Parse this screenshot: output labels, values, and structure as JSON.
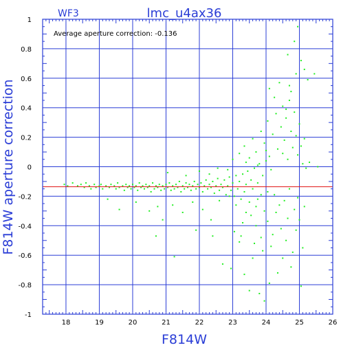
{
  "header": {
    "camera": "WF3",
    "title": "lmc_u4ax36"
  },
  "annotation": "Average aperture correction: -0.136",
  "colors": {
    "frame": "#2a3dd6",
    "grid": "#2a3dd6",
    "points": "#22ee22",
    "mean_line": "#e01010",
    "tick_text": "#000000"
  },
  "chart_data": {
    "type": "scatter",
    "title": "lmc_u4ax36",
    "xlabel": "F814W",
    "ylabel": "F814W aperture correction",
    "xlim": [
      17.3,
      26
    ],
    "ylim": [
      -1,
      1
    ],
    "xticks": [
      18,
      19,
      20,
      21,
      22,
      23,
      24,
      25,
      26
    ],
    "xtick_labels": [
      "18",
      "19",
      "20",
      "21",
      "22",
      "23",
      "24",
      "25",
      "26"
    ],
    "yticks": [
      -1,
      -0.8,
      -0.6,
      -0.4,
      -0.2,
      0,
      0.2,
      0.4,
      0.6,
      0.8,
      1
    ],
    "ytick_labels": [
      "-1",
      "-0.8",
      "-0.6",
      "-0.4",
      "-0.2",
      "0",
      "0.2",
      "0.4",
      "0.6",
      "0.8",
      "1"
    ],
    "grid": true,
    "mean_correction": -0.136,
    "points": [
      [
        17.95,
        -0.12
      ],
      [
        18.05,
        -0.13
      ],
      [
        18.2,
        -0.11
      ],
      [
        18.35,
        -0.13
      ],
      [
        18.45,
        -0.12
      ],
      [
        18.55,
        -0.14
      ],
      [
        18.6,
        -0.11
      ],
      [
        18.7,
        -0.13
      ],
      [
        18.75,
        -0.15
      ],
      [
        18.85,
        -0.12
      ],
      [
        18.9,
        -0.14
      ],
      [
        19.0,
        -0.13
      ],
      [
        19.05,
        -0.12
      ],
      [
        19.1,
        -0.15
      ],
      [
        19.2,
        -0.13
      ],
      [
        19.3,
        -0.14
      ],
      [
        19.35,
        -0.12
      ],
      [
        19.45,
        -0.13
      ],
      [
        19.5,
        -0.15
      ],
      [
        19.55,
        -0.11
      ],
      [
        19.6,
        -0.14
      ],
      [
        19.7,
        -0.13
      ],
      [
        19.75,
        -0.16
      ],
      [
        19.8,
        -0.12
      ],
      [
        19.85,
        -0.14
      ],
      [
        19.9,
        -0.13
      ],
      [
        19.95,
        -0.15
      ],
      [
        20.0,
        -0.12
      ],
      [
        20.05,
        -0.14
      ],
      [
        20.1,
        -0.13
      ],
      [
        20.15,
        -0.16
      ],
      [
        20.2,
        -0.11
      ],
      [
        20.25,
        -0.14
      ],
      [
        20.3,
        -0.13
      ],
      [
        20.35,
        -0.15
      ],
      [
        20.4,
        -0.12
      ],
      [
        20.45,
        -0.14
      ],
      [
        20.5,
        -0.13
      ],
      [
        20.55,
        -0.17
      ],
      [
        20.6,
        -0.11
      ],
      [
        20.65,
        -0.15
      ],
      [
        20.7,
        -0.13
      ],
      [
        20.75,
        -0.14
      ],
      [
        20.8,
        -0.12
      ],
      [
        20.85,
        -0.16
      ],
      [
        20.9,
        -0.13
      ],
      [
        20.95,
        -0.15
      ],
      [
        21.0,
        -0.12
      ],
      [
        21.05,
        -0.14
      ],
      [
        21.1,
        -0.11
      ],
      [
        21.15,
        -0.16
      ],
      [
        21.2,
        -0.13
      ],
      [
        21.25,
        -0.15
      ],
      [
        21.3,
        -0.12
      ],
      [
        21.35,
        -0.14
      ],
      [
        21.4,
        -0.1
      ],
      [
        21.45,
        -0.17
      ],
      [
        21.5,
        -0.13
      ],
      [
        21.55,
        -0.15
      ],
      [
        21.6,
        -0.11
      ],
      [
        21.65,
        -0.14
      ],
      [
        21.7,
        -0.12
      ],
      [
        21.75,
        -0.16
      ],
      [
        21.8,
        -0.13
      ],
      [
        21.85,
        -0.1
      ],
      [
        21.9,
        -0.15
      ],
      [
        21.95,
        -0.12
      ],
      [
        22.0,
        -0.14
      ],
      [
        22.05,
        -0.11
      ],
      [
        22.1,
        -0.17
      ],
      [
        22.15,
        -0.13
      ],
      [
        22.2,
        -0.09
      ],
      [
        22.25,
        -0.15
      ],
      [
        22.3,
        -0.12
      ],
      [
        22.35,
        -0.14
      ],
      [
        22.4,
        -0.1
      ],
      [
        22.45,
        -0.18
      ],
      [
        22.5,
        -0.13
      ],
      [
        22.55,
        -0.08
      ],
      [
        22.6,
        -0.16
      ],
      [
        22.65,
        -0.12
      ],
      [
        22.7,
        -0.14
      ],
      [
        22.75,
        -0.09
      ],
      [
        22.8,
        -0.19
      ],
      [
        22.85,
        -0.13
      ],
      [
        22.9,
        -0.07
      ],
      [
        22.95,
        -0.16
      ],
      [
        23.0,
        -0.11
      ],
      [
        23.05,
        -0.2
      ],
      [
        23.1,
        -0.06
      ],
      [
        23.15,
        -0.15
      ],
      [
        23.2,
        -0.1
      ],
      [
        23.25,
        -0.22
      ],
      [
        23.3,
        -0.05
      ],
      [
        23.35,
        -0.17
      ],
      [
        23.4,
        -0.12
      ],
      [
        23.45,
        -0.03
      ],
      [
        23.5,
        -0.24
      ],
      [
        23.55,
        -0.09
      ],
      [
        23.6,
        -0.15
      ],
      [
        23.65,
        -0.01
      ],
      [
        23.7,
        -0.27
      ],
      [
        23.75,
        -0.11
      ],
      [
        23.8,
        0.02
      ],
      [
        23.85,
        -0.19
      ],
      [
        23.9,
        -0.06
      ],
      [
        23.95,
        -0.3
      ],
      [
        24.0,
        0.04
      ],
      [
        19.25,
        -0.22
      ],
      [
        19.6,
        -0.29
      ],
      [
        20.1,
        -0.24
      ],
      [
        20.5,
        -0.3
      ],
      [
        20.75,
        -0.27
      ],
      [
        20.9,
        -0.36
      ],
      [
        21.2,
        -0.26
      ],
      [
        21.5,
        -0.31
      ],
      [
        21.8,
        -0.24
      ],
      [
        22.1,
        -0.29
      ],
      [
        22.35,
        -0.36
      ],
      [
        22.6,
        -0.23
      ],
      [
        21.05,
        -0.04
      ],
      [
        21.6,
        -0.06
      ],
      [
        22.0,
        -0.03
      ],
      [
        22.3,
        -0.05
      ],
      [
        22.55,
        -0.01
      ],
      [
        22.85,
        -0.02
      ],
      [
        20.7,
        -0.47
      ],
      [
        21.25,
        -0.61
      ],
      [
        21.9,
        -0.43
      ],
      [
        22.4,
        -0.47
      ],
      [
        22.7,
        -0.66
      ],
      [
        22.95,
        -0.69
      ],
      [
        23.05,
        -0.44
      ],
      [
        23.2,
        -0.51
      ],
      [
        23.35,
        -0.73
      ],
      [
        23.5,
        -0.84
      ],
      [
        23.6,
        -0.62
      ],
      [
        23.7,
        -0.4
      ],
      [
        23.8,
        -0.86
      ],
      [
        23.9,
        -0.57
      ],
      [
        23.95,
        -0.91
      ],
      [
        24.1,
        -0.79
      ],
      [
        24.2,
        -0.46
      ],
      [
        24.35,
        -0.72
      ],
      [
        24.5,
        -0.62
      ],
      [
        24.6,
        -0.5
      ],
      [
        24.75,
        -0.68
      ],
      [
        24.9,
        -0.43
      ],
      [
        25.05,
        -0.81
      ],
      [
        25.1,
        -0.55
      ],
      [
        23.3,
        -0.38
      ],
      [
        23.55,
        -0.33
      ],
      [
        23.85,
        -0.48
      ],
      [
        24.05,
        -0.37
      ],
      [
        24.3,
        -0.31
      ],
      [
        24.45,
        -0.42
      ],
      [
        24.65,
        -0.35
      ],
      [
        24.85,
        -0.29
      ],
      [
        25.0,
        -0.36
      ],
      [
        23.25,
        -0.47
      ],
      [
        23.65,
        -0.52
      ],
      [
        24.15,
        -0.54
      ],
      [
        24.4,
        -0.26
      ],
      [
        24.8,
        -0.58
      ],
      [
        23.0,
        0.05
      ],
      [
        23.2,
        0.09
      ],
      [
        23.35,
        0.14
      ],
      [
        23.5,
        0.06
      ],
      [
        23.6,
        0.19
      ],
      [
        23.7,
        0.1
      ],
      [
        23.85,
        0.24
      ],
      [
        23.95,
        0.16
      ],
      [
        24.05,
        0.31
      ],
      [
        24.1,
        0.07
      ],
      [
        24.2,
        0.22
      ],
      [
        24.3,
        0.36
      ],
      [
        24.35,
        0.12
      ],
      [
        24.45,
        0.27
      ],
      [
        24.5,
        0.41
      ],
      [
        24.55,
        0.18
      ],
      [
        24.6,
        0.33
      ],
      [
        24.65,
        0.05
      ],
      [
        24.7,
        0.45
      ],
      [
        24.75,
        0.24
      ],
      [
        24.8,
        0.13
      ],
      [
        24.85,
        0.37
      ],
      [
        24.9,
        0.21
      ],
      [
        24.95,
        0.08
      ],
      [
        25.0,
        0.29
      ],
      [
        25.05,
        0.14
      ],
      [
        25.1,
        0.02
      ],
      [
        25.15,
        0.19
      ],
      [
        24.1,
        0.53
      ],
      [
        24.25,
        0.47
      ],
      [
        24.4,
        0.57
      ],
      [
        24.6,
        0.39
      ],
      [
        24.75,
        0.51
      ],
      [
        24.9,
        0.63
      ],
      [
        25.05,
        0.72
      ],
      [
        25.15,
        0.66
      ],
      [
        25.25,
        0.59
      ],
      [
        25.45,
        0.63
      ],
      [
        24.65,
        0.76
      ],
      [
        24.85,
        0.85
      ],
      [
        24.95,
        0.95
      ],
      [
        24.7,
        0.55
      ],
      [
        23.4,
        0.03
      ],
      [
        23.75,
        0.01
      ],
      [
        24.0,
        0.11
      ],
      [
        24.15,
        -0.02
      ],
      [
        24.5,
        0.09
      ],
      [
        25.2,
        -0.01
      ],
      [
        25.3,
        0.03
      ],
      [
        25.55,
        0.0
      ],
      [
        22.9,
        -0.2
      ],
      [
        23.1,
        -0.26
      ],
      [
        23.4,
        -0.31
      ],
      [
        23.75,
        -0.22
      ],
      [
        24.05,
        -0.17
      ],
      [
        24.25,
        -0.19
      ],
      [
        24.55,
        -0.23
      ],
      [
        24.7,
        -0.15
      ],
      [
        24.95,
        -0.21
      ],
      [
        25.15,
        -0.27
      ]
    ]
  }
}
